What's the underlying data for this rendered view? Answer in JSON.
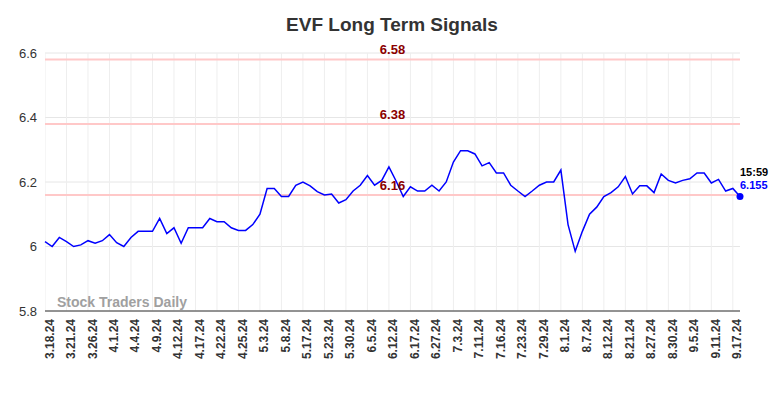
{
  "chart_data": {
    "type": "line",
    "title": "EVF Long Term Signals",
    "categories": [
      "3.18.24",
      null,
      null,
      "3.21.24",
      null,
      null,
      "3.26.24",
      null,
      null,
      "4.1.24",
      null,
      null,
      "4.4.24",
      null,
      null,
      "4.9.24",
      null,
      null,
      "4.12.24",
      null,
      null,
      "4.17.24",
      null,
      null,
      "4.22.24",
      null,
      null,
      "4.25.24",
      null,
      null,
      "5.3.24",
      null,
      null,
      "5.8.24",
      null,
      null,
      "5.17.24",
      null,
      null,
      "5.23.24",
      null,
      null,
      "5.30.24",
      null,
      null,
      "6.5.24",
      null,
      null,
      "6.12.24",
      null,
      null,
      "6.17.24",
      null,
      null,
      "6.27.24",
      null,
      null,
      "7.3.24",
      null,
      null,
      "7.11.24",
      null,
      null,
      "7.16.24",
      null,
      null,
      "7.23.24",
      null,
      null,
      "7.29.24",
      null,
      null,
      "8.1.24",
      null,
      null,
      "8.7.24",
      null,
      null,
      "8.12.24",
      null,
      null,
      "8.21.24",
      null,
      null,
      "8.27.24",
      null,
      null,
      "8.30.24",
      null,
      null,
      "9.5.24",
      null,
      null,
      "9.11.24",
      null,
      null,
      "9.17.24",
      null
    ],
    "values": [
      6.015,
      6.0,
      6.028,
      6.015,
      6.0,
      6.005,
      6.018,
      6.01,
      6.018,
      6.037,
      6.012,
      6.0,
      6.028,
      6.047,
      6.047,
      6.047,
      6.087,
      6.04,
      6.058,
      6.01,
      6.058,
      6.058,
      6.058,
      6.087,
      6.077,
      6.077,
      6.058,
      6.05,
      6.05,
      6.068,
      6.1,
      6.18,
      6.18,
      6.155,
      6.155,
      6.19,
      6.2,
      6.188,
      6.17,
      6.16,
      6.163,
      6.135,
      6.145,
      6.172,
      6.19,
      6.22,
      6.19,
      6.205,
      6.247,
      6.203,
      6.155,
      6.185,
      6.172,
      6.172,
      6.19,
      6.172,
      6.2,
      6.262,
      6.297,
      6.297,
      6.287,
      6.25,
      6.26,
      6.228,
      6.228,
      6.19,
      6.172,
      6.155,
      6.172,
      6.19,
      6.2,
      6.2,
      6.237,
      6.068,
      5.985,
      6.047,
      6.1,
      6.122,
      6.155,
      6.167,
      6.185,
      6.217,
      6.163,
      6.188,
      6.188,
      6.167,
      6.225,
      6.205,
      6.197,
      6.205,
      6.21,
      6.228,
      6.228,
      6.197,
      6.208,
      6.172,
      6.18,
      6.155
    ],
    "color": "#0000ff",
    "ylim": [
      5.8,
      6.6
    ],
    "yticks": [
      5.8,
      6,
      6.2,
      6.4,
      6.6
    ],
    "grid": true,
    "reference_lines": [
      6.58,
      6.38,
      6.16
    ],
    "time_label": "15:59",
    "watermark": "Stock Traders Daily"
  }
}
